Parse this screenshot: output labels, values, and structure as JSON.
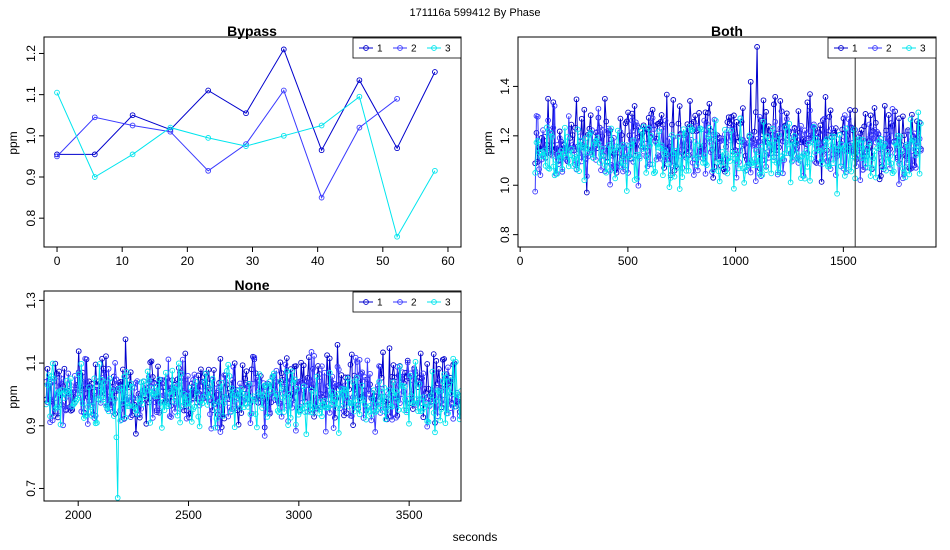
{
  "figure": {
    "suptitle": "171116a   599412   By Phase",
    "xlabel": "seconds"
  },
  "colors": {
    "1": "#0000CD",
    "2": "#3A3AFF",
    "3": "#00E5EE"
  },
  "chart_data": [
    {
      "type": "line",
      "title": "Bypass",
      "ylabel": "ppm",
      "xlim": [
        -2,
        62
      ],
      "ylim": [
        0.73,
        1.24
      ],
      "xticks": [
        0,
        10,
        20,
        30,
        40,
        50,
        60
      ],
      "yticks": [
        0.8,
        0.9,
        1.0,
        1.1,
        1.2
      ],
      "legend": [
        "1",
        "2",
        "3"
      ],
      "legend_loc": "top-right",
      "x": [
        0,
        5.8,
        11.6,
        17.4,
        23.2,
        29,
        34.8,
        40.6,
        46.4,
        52.2,
        58
      ],
      "series": [
        {
          "name": "1",
          "values": [
            0.955,
            0.955,
            1.05,
            1.015,
            1.11,
            1.055,
            1.21,
            0.965,
            1.135,
            0.97,
            1.155
          ]
        },
        {
          "name": "2",
          "values": [
            0.95,
            1.045,
            1.025,
            1.01,
            0.915,
            0.98,
            1.11,
            0.85,
            1.02,
            1.09,
            null
          ]
        },
        {
          "name": "3",
          "values": [
            1.105,
            0.9,
            0.955,
            1.02,
            0.995,
            0.975,
            1.0,
            1.025,
            1.095,
            0.755,
            0.915
          ]
        }
      ]
    },
    {
      "type": "line",
      "title": "Both",
      "ylabel": "ppm",
      "xlim": [
        -10,
        1930
      ],
      "ylim": [
        0.75,
        1.6
      ],
      "xticks": [
        0,
        500,
        1000,
        1500
      ],
      "yticks": [
        0.8,
        1.0,
        1.2,
        1.4
      ],
      "vline": 1555,
      "legend": [
        "1",
        "2",
        "3"
      ],
      "legend_loc": "top-right",
      "gen": {
        "x0": 70,
        "x1": 1860,
        "n": 300,
        "seed": 11,
        "base": [
          1.19,
          1.15,
          1.12
        ],
        "amp": [
          0.2,
          0.17,
          0.15
        ],
        "min": 0.77,
        "max": 1.56,
        "peak": [
          1100,
          1.56
        ]
      }
    },
    {
      "type": "line",
      "title": "None",
      "ylabel": "ppm",
      "xlim": [
        1845,
        3735
      ],
      "ylim": [
        0.66,
        1.33
      ],
      "xticks": [
        2000,
        2500,
        3000,
        3500
      ],
      "yticks": [
        0.7,
        0.9,
        1.1,
        1.3
      ],
      "legend": [
        "1",
        "2",
        "3"
      ],
      "legend_loc": "top-right",
      "gen": {
        "x0": 1855,
        "x1": 3735,
        "n": 320,
        "seed": 23,
        "base": [
          1.02,
          1.0,
          0.99
        ],
        "amp": [
          0.14,
          0.13,
          0.12
        ],
        "min": 0.67,
        "max": 1.31,
        "trough": [
          2180,
          0.67
        ]
      }
    }
  ]
}
